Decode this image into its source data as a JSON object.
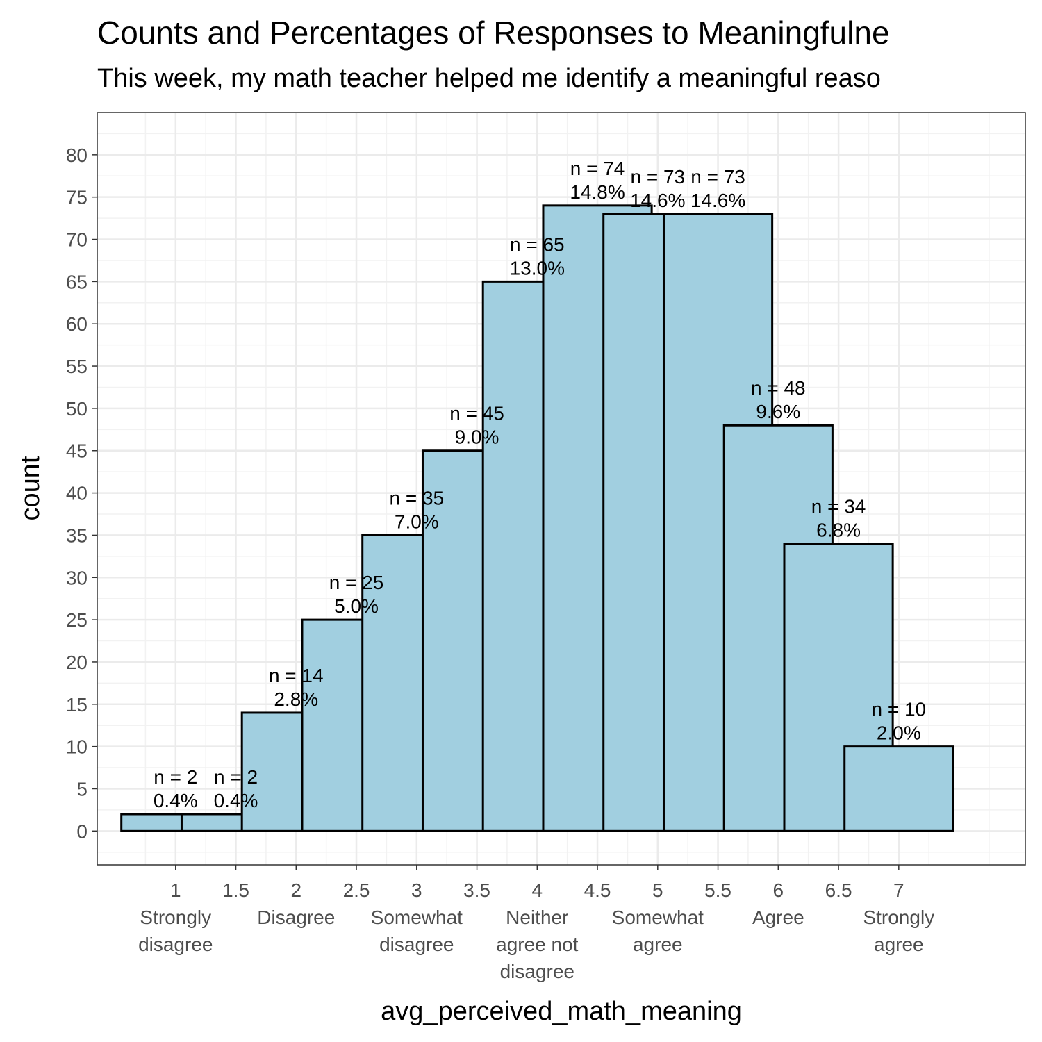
{
  "chart_data": {
    "type": "bar",
    "title": "Counts and Percentages of Responses to Meaningfulne",
    "subtitle": "This week, my math teacher helped me identify a meaningful reaso",
    "xlabel": "avg_perceived_math_meaning",
    "ylabel": "count",
    "x": [
      1,
      1.5,
      2,
      2.5,
      3,
      3.5,
      4,
      4.5,
      5,
      5.5,
      6,
      6.5,
      7
    ],
    "values": [
      2,
      2,
      14,
      25,
      35,
      45,
      65,
      74,
      73,
      73,
      48,
      34,
      10
    ],
    "labels": [
      [
        "n = 2",
        "0.4%"
      ],
      [
        "n = 2",
        "0.4%"
      ],
      [
        "n = 14",
        "2.8%"
      ],
      [
        "n = 25",
        "5.0%"
      ],
      [
        "n = 35",
        "7.0%"
      ],
      [
        "n = 45",
        "9.0%"
      ],
      [
        "n = 65",
        "13.0%"
      ],
      [
        "n = 74",
        "14.8%"
      ],
      [
        "n = 73",
        "14.6%"
      ],
      [
        "n = 73",
        "14.6%"
      ],
      [
        "n = 48",
        "9.6%"
      ],
      [
        "n = 34",
        "6.8%"
      ],
      [
        "n = 10",
        "2.0%"
      ]
    ],
    "x_tick_labels": [
      [
        "1",
        "Strongly",
        "disagree"
      ],
      [
        "1.5"
      ],
      [
        "2",
        "Disagree"
      ],
      [
        "2.5"
      ],
      [
        "3",
        "Somewhat",
        "disagree"
      ],
      [
        "3.5"
      ],
      [
        "4",
        "Neither",
        "agree not",
        "disagree"
      ],
      [
        "4.5"
      ],
      [
        "5",
        "Somewhat",
        "agree"
      ],
      [
        "5.5"
      ],
      [
        "6",
        "Agree"
      ],
      [
        "6.5"
      ],
      [
        "7",
        "Strongly",
        "agree"
      ]
    ],
    "y_ticks": [
      0,
      5,
      10,
      15,
      20,
      25,
      30,
      35,
      40,
      45,
      50,
      55,
      60,
      65,
      70,
      75,
      80
    ],
    "xlim": [
      0.35,
      8.05
    ],
    "ylim": [
      -4,
      85
    ],
    "bar_width": 0.45,
    "grid": true,
    "colors": {
      "bar_fill": "#a1cfe0",
      "bar_stroke": "#000000",
      "grid_major": "#ebebeb",
      "grid_minor": "#f2f2f2",
      "panel_border": "#333333",
      "tick_text": "#4d4d4d"
    }
  }
}
